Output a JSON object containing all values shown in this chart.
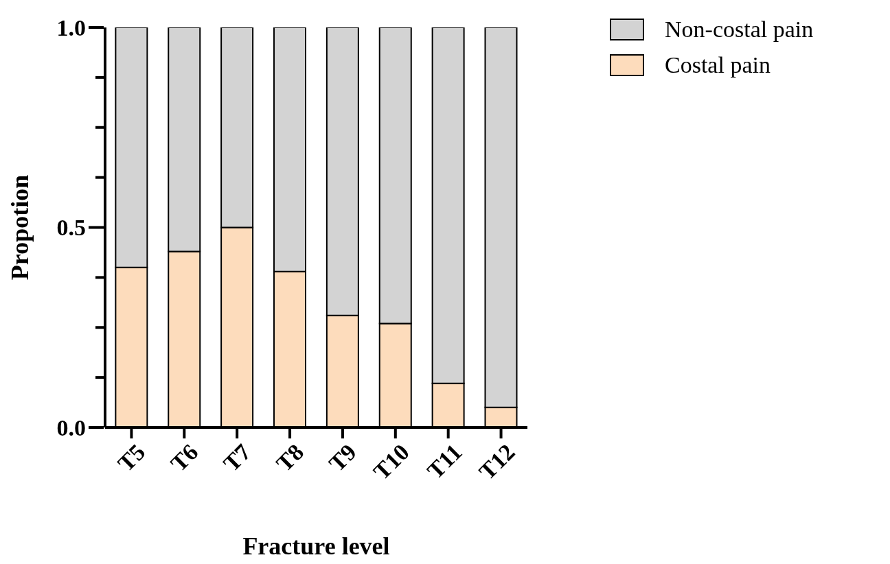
{
  "chart_data": {
    "type": "bar",
    "xlabel": "Fracture level",
    "ylabel": "Propotion",
    "categories": [
      "T5",
      "T6",
      "T7",
      "T8",
      "T9",
      "T10",
      "T11",
      "T12"
    ],
    "stacked": true,
    "series": [
      {
        "name": "Costal pain",
        "color": "#fddcbc",
        "values": [
          0.4,
          0.44,
          0.5,
          0.39,
          0.28,
          0.26,
          0.11,
          0.05
        ]
      },
      {
        "name": "Non-costal pain",
        "color": "#d3d3d3",
        "values": [
          0.6,
          0.56,
          0.5,
          0.61,
          0.72,
          0.74,
          0.89,
          0.95
        ]
      }
    ],
    "ylim": [
      0,
      1
    ],
    "yticks": [
      {
        "value": 0,
        "label": "0.0"
      },
      {
        "value": 0.125,
        "label": null
      },
      {
        "value": 0.25,
        "label": null
      },
      {
        "value": 0.375,
        "label": null
      },
      {
        "value": 0.5,
        "label": "0.5"
      },
      {
        "value": 0.625,
        "label": null
      },
      {
        "value": 0.75,
        "label": null
      },
      {
        "value": 0.875,
        "label": null
      },
      {
        "value": 1,
        "label": "1.0"
      }
    ],
    "grid": false,
    "legend": "top right"
  }
}
